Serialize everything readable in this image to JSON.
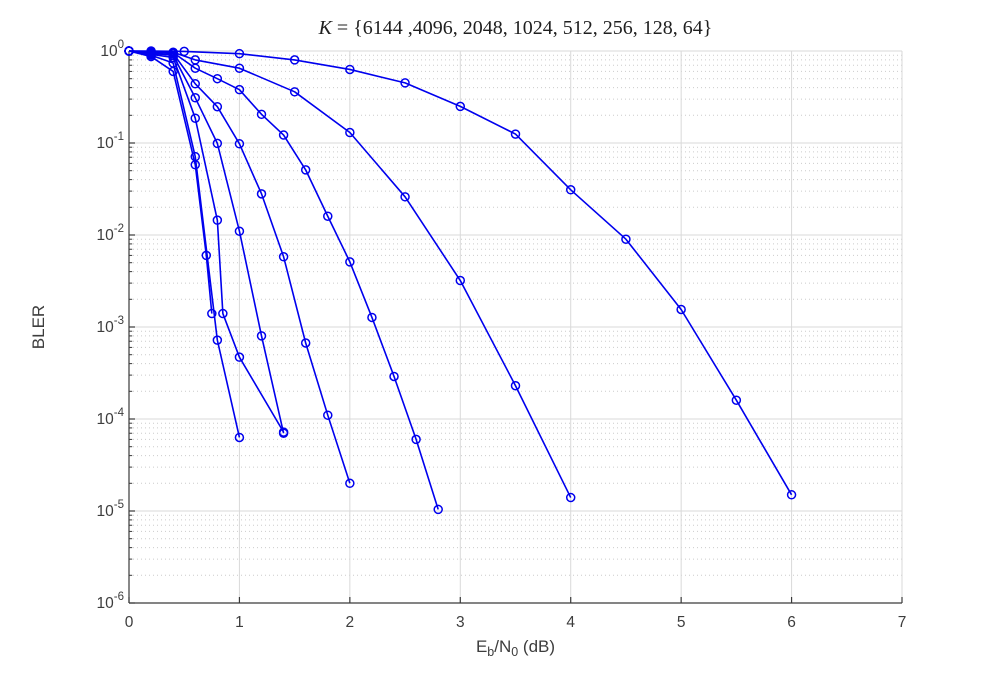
{
  "figure": {
    "background": "#ffffff",
    "axis_color": "#3a3a3a",
    "text_color": "#3d3d3d",
    "major_grid_color": "#d9d9d9",
    "minor_grid_color": "#cbcbcb",
    "line_color": "#0000ee"
  },
  "title": {
    "math_var": "K",
    "rest": " = {6144 ,4096, 2048, 1024, 512, 256, 128, 64}"
  },
  "axes": {
    "xlabel": {
      "pre": "E",
      "sub1": "b",
      "mid": "/N",
      "sub2": "0",
      "post": " (dB)"
    },
    "ylabel": "BLER",
    "x_ticks": [
      0,
      1,
      2,
      3,
      4,
      5,
      6,
      7
    ],
    "y_tick_base": "10",
    "y_tick_exponents": [
      0,
      -1,
      -2,
      -3,
      -4,
      -5,
      -6
    ]
  },
  "chart_data": {
    "type": "line",
    "title": "K = {6144 ,4096, 2048, 1024, 512, 256, 128, 64}",
    "xlabel": "Eb/N0 (dB)",
    "ylabel": "BLER",
    "xlim": [
      0,
      7
    ],
    "ylog": true,
    "ylim": [
      1e-06,
      1
    ],
    "grid": "major on (solid), log minor horizontal dotted",
    "legend_position": "none",
    "marker": "o",
    "series": [
      {
        "name": "K=6144",
        "x": [
          0,
          0.2,
          0.4,
          0.6,
          0.7,
          0.75
        ],
        "y": [
          1,
          0.87,
          0.6,
          0.058,
          0.006,
          0.0014
        ]
      },
      {
        "name": "K=4096",
        "x": [
          0,
          0.2,
          0.4,
          0.6,
          0.8,
          1.0
        ],
        "y": [
          1,
          0.9,
          0.74,
          0.071,
          0.00072,
          6.3e-05
        ]
      },
      {
        "name": "K=2048",
        "x": [
          0,
          0.2,
          0.4,
          0.6,
          0.8,
          0.85,
          1.0,
          1.4
        ],
        "y": [
          1,
          0.92,
          0.85,
          0.186,
          0.0145,
          0.0014,
          0.00047,
          7.2e-05
        ]
      },
      {
        "name": "K=1024",
        "x": [
          0,
          0.2,
          0.4,
          0.6,
          0.8,
          1.0,
          1.2,
          1.4
        ],
        "y": [
          1,
          0.94,
          0.9,
          0.31,
          0.099,
          0.011,
          0.0008,
          7e-05
        ]
      },
      {
        "name": "K=512",
        "x": [
          0,
          0.2,
          0.4,
          0.6,
          0.8,
          1.0,
          1.2,
          1.4,
          1.6,
          1.8,
          2.0
        ],
        "y": [
          1,
          0.96,
          0.94,
          0.44,
          0.248,
          0.098,
          0.028,
          0.0058,
          0.00067,
          0.00011,
          2e-05
        ]
      },
      {
        "name": "K=256",
        "x": [
          0,
          0.2,
          0.4,
          0.6,
          0.8,
          1.0,
          1.2,
          1.4,
          1.6,
          1.8,
          2.0,
          2.2,
          2.4,
          2.6,
          2.8
        ],
        "y": [
          1,
          0.97,
          0.96,
          0.65,
          0.5,
          0.38,
          0.205,
          0.122,
          0.051,
          0.016,
          0.0051,
          0.00127,
          0.00029,
          6e-05,
          1.04e-05
        ]
      },
      {
        "name": "K=128",
        "x": [
          0,
          0.2,
          0.4,
          0.6,
          1.0,
          1.5,
          2.0,
          2.5,
          3.0,
          3.5,
          4.0
        ],
        "y": [
          1,
          0.99,
          0.97,
          0.8,
          0.65,
          0.36,
          0.13,
          0.026,
          0.0032,
          0.00023,
          1.4e-05
        ]
      },
      {
        "name": "K=64",
        "x": [
          0,
          0.2,
          0.5,
          1.0,
          1.5,
          2.0,
          2.5,
          3.0,
          3.5,
          4.0,
          4.5,
          5.0,
          5.5,
          6.0
        ],
        "y": [
          1,
          1,
          0.99,
          0.935,
          0.8,
          0.63,
          0.45,
          0.25,
          0.125,
          0.031,
          0.009,
          0.00155,
          0.00016,
          1.5e-05
        ]
      }
    ]
  }
}
